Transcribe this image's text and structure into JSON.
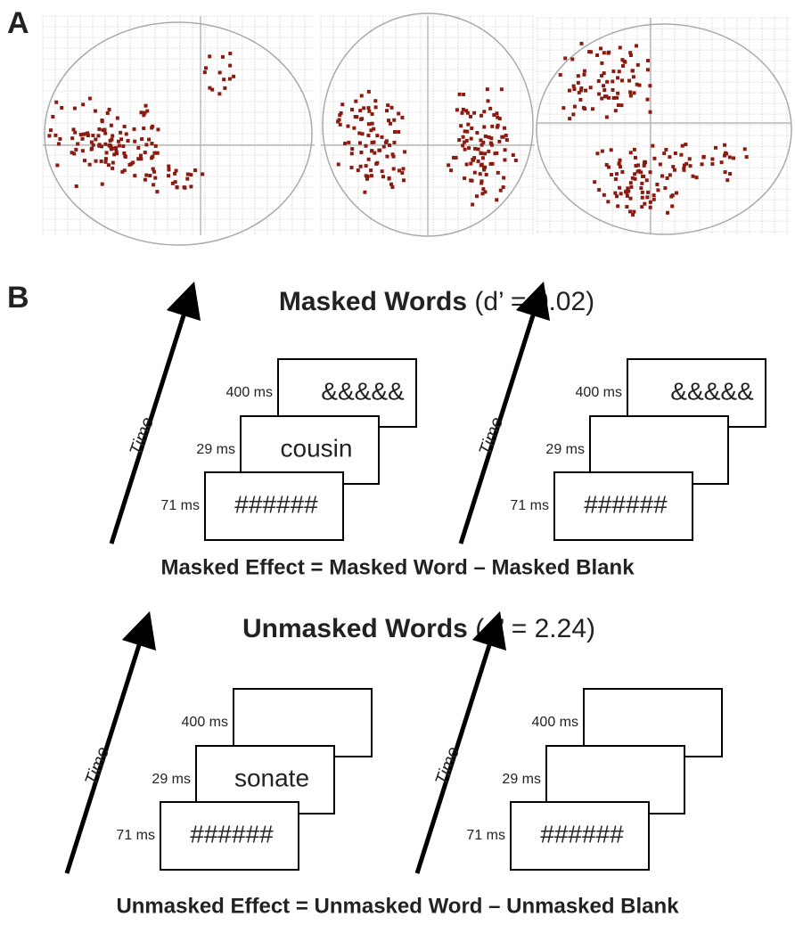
{
  "panel_a": {
    "label": "A"
  },
  "panel_b": {
    "label": "B",
    "conditions": [
      {
        "title": "Masked Words",
        "stat": "(d’ = 0.02)",
        "trials": [
          {
            "axis_label": "Time",
            "frames": [
              {
                "duration": "400 ms",
                "content": "&&&&&"
              },
              {
                "duration": "29 ms",
                "content": "cousin"
              },
              {
                "duration": "71 ms",
                "content": "######"
              }
            ]
          },
          {
            "axis_label": "Time",
            "frames": [
              {
                "duration": "400 ms",
                "content": "&&&&&"
              },
              {
                "duration": "29 ms"
              },
              {
                "duration": "71 ms",
                "content": "######"
              }
            ]
          }
        ],
        "contrast": "Masked Effect = Masked Word – Masked Blank"
      },
      {
        "title": "Unmasked Words",
        "stat": "(d’ = 2.24)",
        "trials": [
          {
            "axis_label": "Time",
            "frames": [
              {
                "duration": "400 ms"
              },
              {
                "duration": "29 ms",
                "content": "sonate"
              },
              {
                "duration": "71 ms",
                "content": "######"
              }
            ]
          },
          {
            "axis_label": "Time",
            "frames": [
              {
                "duration": "400 ms"
              },
              {
                "duration": "29 ms"
              },
              {
                "duration": "71 ms",
                "content": "######"
              }
            ]
          }
        ],
        "contrast": "Unmasked Effect = Unmasked Word – Unmasked Blank"
      }
    ]
  }
}
